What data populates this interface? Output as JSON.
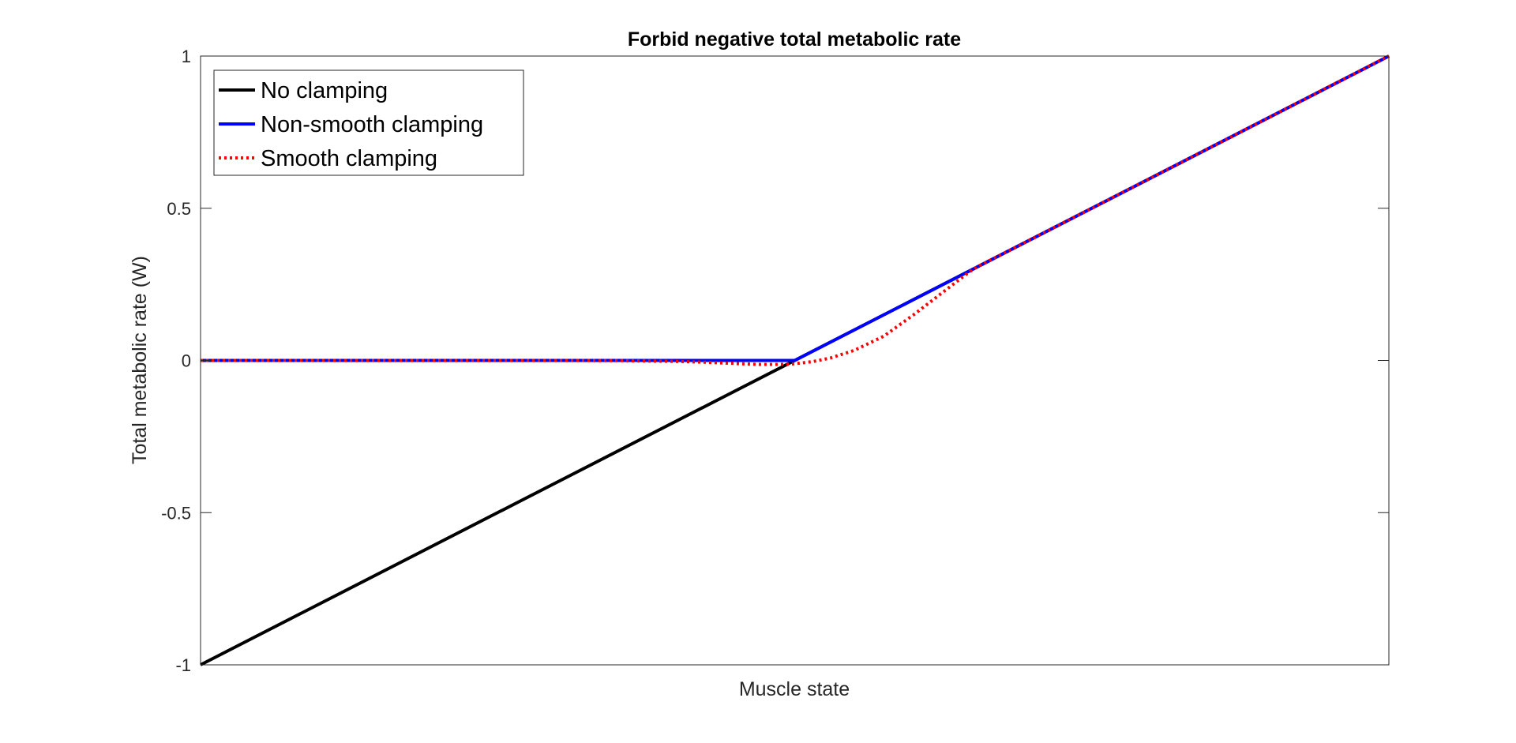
{
  "chart_data": {
    "type": "line",
    "title": "Forbid negative total metabolic rate",
    "xlabel": "Muscle state",
    "ylabel": "Total metabolic rate (W)",
    "ylim": [
      -1,
      1
    ],
    "xlim": [
      -1,
      1
    ],
    "yticks": [
      {
        "value": -1,
        "label": "-1"
      },
      {
        "value": -0.5,
        "label": "-0.5"
      },
      {
        "value": 0,
        "label": "0"
      },
      {
        "value": 0.5,
        "label": "0.5"
      },
      {
        "value": 1,
        "label": "1"
      }
    ],
    "xticks_visible": false,
    "grid": false,
    "legend_position": "top-left",
    "series": [
      {
        "name": "No clamping",
        "color": "#000000",
        "style": "solid",
        "x": [
          -1,
          1
        ],
        "y": [
          -1,
          1
        ]
      },
      {
        "name": "Non-smooth clamping",
        "color": "#0000ff",
        "style": "solid",
        "x": [
          -1,
          0,
          1
        ],
        "y": [
          0,
          0,
          1
        ]
      },
      {
        "name": "Smooth clamping",
        "color": "#ff0000",
        "style": "dotted",
        "x": [
          -1,
          -0.3,
          -0.2,
          -0.15,
          -0.1,
          -0.06,
          -0.03,
          0,
          0.03,
          0.06,
          0.1,
          0.15,
          0.2,
          0.3,
          1
        ],
        "y": [
          0,
          -0.0005,
          -0.003,
          -0.006,
          -0.01,
          -0.013,
          -0.013,
          -0.011,
          -0.004,
          0.008,
          0.033,
          0.08,
          0.15,
          0.3,
          1
        ]
      }
    ]
  }
}
